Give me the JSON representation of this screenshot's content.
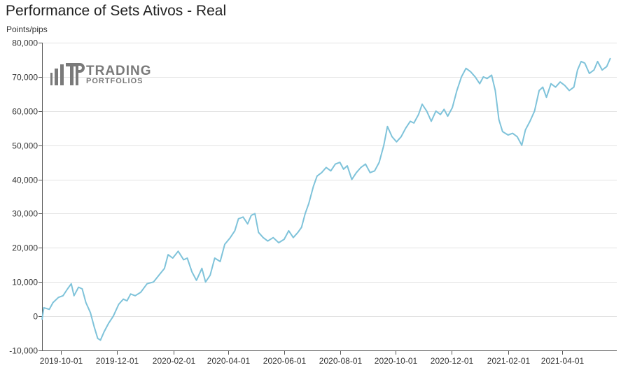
{
  "chart_data": {
    "type": "line",
    "title": "Performance of Sets Ativos - Real",
    "ylabel": "Points/pips",
    "xlabel": "",
    "ylim": [
      -10000,
      80000
    ],
    "grid": true,
    "y_ticks": [
      {
        "value": -10000,
        "label": "-10,000"
      },
      {
        "value": 0,
        "label": "0"
      },
      {
        "value": 10000,
        "label": "10,000"
      },
      {
        "value": 20000,
        "label": "20,000"
      },
      {
        "value": 30000,
        "label": "30,000"
      },
      {
        "value": 40000,
        "label": "40,000"
      },
      {
        "value": 50000,
        "label": "50,000"
      },
      {
        "value": 60000,
        "label": "60,000"
      },
      {
        "value": 70000,
        "label": "70,000"
      },
      {
        "value": 80000,
        "label": "80,000"
      }
    ],
    "x_ticks": [
      "2019-10-01",
      "2019-12-01",
      "2020-02-01",
      "2020-04-01",
      "2020-06-01",
      "2020-08-01",
      "2020-10-01",
      "2020-12-01",
      "2021-02-01",
      "2021-04-01"
    ],
    "xlim": [
      "2019-09-10",
      "2021-05-31"
    ],
    "series": [
      {
        "color": "#7fc3da",
        "points": [
          [
            "2019-09-10",
            -1000
          ],
          [
            "2019-09-12",
            2500
          ],
          [
            "2019-09-18",
            2000
          ],
          [
            "2019-09-22",
            4000
          ],
          [
            "2019-09-28",
            5500
          ],
          [
            "2019-10-03",
            6000
          ],
          [
            "2019-10-08",
            8000
          ],
          [
            "2019-10-12",
            9500
          ],
          [
            "2019-10-15",
            6000
          ],
          [
            "2019-10-20",
            8500
          ],
          [
            "2019-10-24",
            8000
          ],
          [
            "2019-10-28",
            4000
          ],
          [
            "2019-11-02",
            1000
          ],
          [
            "2019-11-06",
            -3000
          ],
          [
            "2019-11-10",
            -6500
          ],
          [
            "2019-11-13",
            -7000
          ],
          [
            "2019-11-17",
            -4500
          ],
          [
            "2019-11-22",
            -2000
          ],
          [
            "2019-11-27",
            0
          ],
          [
            "2019-12-03",
            3500
          ],
          [
            "2019-12-08",
            5000
          ],
          [
            "2019-12-12",
            4500
          ],
          [
            "2019-12-16",
            6500
          ],
          [
            "2019-12-21",
            6000
          ],
          [
            "2019-12-27",
            7000
          ],
          [
            "2020-01-03",
            9500
          ],
          [
            "2020-01-10",
            10000
          ],
          [
            "2020-01-16",
            12000
          ],
          [
            "2020-01-22",
            14000
          ],
          [
            "2020-01-26",
            18000
          ],
          [
            "2020-01-31",
            17000
          ],
          [
            "2020-02-06",
            19000
          ],
          [
            "2020-02-12",
            16500
          ],
          [
            "2020-02-16",
            17000
          ],
          [
            "2020-02-21",
            13000
          ],
          [
            "2020-02-26",
            10500
          ],
          [
            "2020-03-03",
            14000
          ],
          [
            "2020-03-07",
            10000
          ],
          [
            "2020-03-12",
            12000
          ],
          [
            "2020-03-17",
            17000
          ],
          [
            "2020-03-23",
            16000
          ],
          [
            "2020-03-28",
            21000
          ],
          [
            "2020-04-03",
            23000
          ],
          [
            "2020-04-08",
            25000
          ],
          [
            "2020-04-12",
            28500
          ],
          [
            "2020-04-17",
            29000
          ],
          [
            "2020-04-22",
            27000
          ],
          [
            "2020-04-26",
            29500
          ],
          [
            "2020-04-30",
            30000
          ],
          [
            "2020-05-04",
            24500
          ],
          [
            "2020-05-09",
            23000
          ],
          [
            "2020-05-14",
            22000
          ],
          [
            "2020-05-20",
            23000
          ],
          [
            "2020-05-26",
            21500
          ],
          [
            "2020-06-01",
            22500
          ],
          [
            "2020-06-06",
            25000
          ],
          [
            "2020-06-11",
            23000
          ],
          [
            "2020-06-16",
            24500
          ],
          [
            "2020-06-20",
            26000
          ],
          [
            "2020-06-24",
            30000
          ],
          [
            "2020-06-28",
            33000
          ],
          [
            "2020-07-03",
            38000
          ],
          [
            "2020-07-07",
            41000
          ],
          [
            "2020-07-12",
            42000
          ],
          [
            "2020-07-17",
            43500
          ],
          [
            "2020-07-22",
            42500
          ],
          [
            "2020-07-27",
            44500
          ],
          [
            "2020-08-01",
            45000
          ],
          [
            "2020-08-05",
            43000
          ],
          [
            "2020-08-09",
            44000
          ],
          [
            "2020-08-14",
            40000
          ],
          [
            "2020-08-19",
            42000
          ],
          [
            "2020-08-24",
            43500
          ],
          [
            "2020-08-29",
            44500
          ],
          [
            "2020-09-03",
            42000
          ],
          [
            "2020-09-08",
            42500
          ],
          [
            "2020-09-13",
            45000
          ],
          [
            "2020-09-18",
            50000
          ],
          [
            "2020-09-22",
            55500
          ],
          [
            "2020-09-27",
            52500
          ],
          [
            "2020-10-02",
            51000
          ],
          [
            "2020-10-07",
            52500
          ],
          [
            "2020-10-12",
            55000
          ],
          [
            "2020-10-17",
            57000
          ],
          [
            "2020-10-21",
            56500
          ],
          [
            "2020-10-26",
            59000
          ],
          [
            "2020-10-30",
            62000
          ],
          [
            "2020-11-04",
            60000
          ],
          [
            "2020-11-09",
            57000
          ],
          [
            "2020-11-14",
            60000
          ],
          [
            "2020-11-19",
            59000
          ],
          [
            "2020-11-23",
            60500
          ],
          [
            "2020-11-27",
            58500
          ],
          [
            "2020-12-02",
            61000
          ],
          [
            "2020-12-07",
            66000
          ],
          [
            "2020-12-12",
            70000
          ],
          [
            "2020-12-17",
            72500
          ],
          [
            "2020-12-22",
            71500
          ],
          [
            "2020-12-27",
            70000
          ],
          [
            "2021-01-01",
            68000
          ],
          [
            "2021-01-05",
            70000
          ],
          [
            "2021-01-09",
            69500
          ],
          [
            "2021-01-14",
            70500
          ],
          [
            "2021-01-18",
            66000
          ],
          [
            "2021-01-22",
            57500
          ],
          [
            "2021-01-26",
            54000
          ],
          [
            "2021-02-01",
            53000
          ],
          [
            "2021-02-06",
            53500
          ],
          [
            "2021-02-11",
            52500
          ],
          [
            "2021-02-16",
            50000
          ],
          [
            "2021-02-20",
            54500
          ],
          [
            "2021-02-25",
            57000
          ],
          [
            "2021-03-02",
            60000
          ],
          [
            "2021-03-07",
            66000
          ],
          [
            "2021-03-11",
            67000
          ],
          [
            "2021-03-15",
            64000
          ],
          [
            "2021-03-20",
            68000
          ],
          [
            "2021-03-25",
            67000
          ],
          [
            "2021-03-30",
            68500
          ],
          [
            "2021-04-04",
            67500
          ],
          [
            "2021-04-09",
            66000
          ],
          [
            "2021-04-14",
            67000
          ],
          [
            "2021-04-18",
            72000
          ],
          [
            "2021-04-22",
            74500
          ],
          [
            "2021-04-26",
            74000
          ],
          [
            "2021-05-01",
            71000
          ],
          [
            "2021-05-06",
            72000
          ],
          [
            "2021-05-10",
            74500
          ],
          [
            "2021-05-15",
            72000
          ],
          [
            "2021-05-20",
            73000
          ],
          [
            "2021-05-24",
            75500
          ]
        ]
      }
    ]
  },
  "watermark": {
    "monogram": "TP",
    "line1": "TRADING",
    "line2": "PORTFOLIOS",
    "color": "#7a7a7a"
  }
}
